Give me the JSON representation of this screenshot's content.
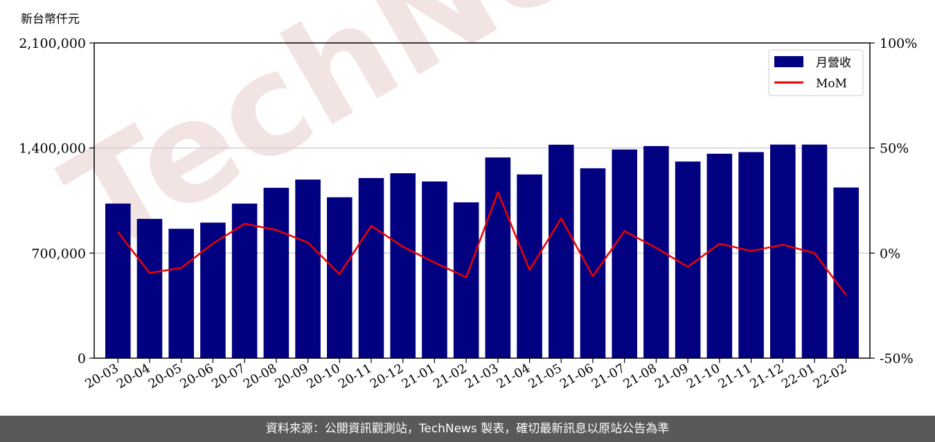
{
  "chart_data": {
    "type": "bar+line",
    "unit_label": "新台幣仟元",
    "categories": [
      "20-03",
      "20-04",
      "20-05",
      "20-06",
      "20-07",
      "20-08",
      "20-09",
      "20-10",
      "20-11",
      "20-12",
      "21-01",
      "21-02",
      "21-03",
      "21-04",
      "21-05",
      "21-06",
      "21-07",
      "21-08",
      "21-09",
      "21-10",
      "21-11",
      "21-12",
      "22-01",
      "22-02"
    ],
    "series": [
      {
        "name": "月營收",
        "kind": "bar",
        "axis": "left",
        "color": "#000080",
        "values": [
          1030000,
          928000,
          862000,
          903000,
          1030000,
          1135000,
          1190000,
          1072000,
          1200000,
          1232000,
          1177000,
          1038000,
          1337000,
          1224000,
          1422000,
          1265000,
          1390000,
          1413000,
          1310000,
          1362000,
          1373000,
          1423000,
          1423000,
          1137000
        ]
      },
      {
        "name": "MoM",
        "kind": "line",
        "axis": "right",
        "color": "#ee0000",
        "values": [
          10.0,
          -9.5,
          -7.0,
          4.5,
          14.0,
          11.0,
          5.0,
          -10.0,
          13.0,
          3.0,
          -4.5,
          -11.5,
          29.0,
          -8.0,
          16.5,
          -11.0,
          10.5,
          2.5,
          -6.5,
          4.5,
          1.0,
          4.0,
          0.0,
          -20.0
        ]
      }
    ],
    "y_left": {
      "min": 0,
      "max": 2100000,
      "ticks": [
        0,
        700000,
        1400000,
        2100000
      ],
      "tick_labels": [
        "0",
        "700,000",
        "1,400,000",
        "2,100,000"
      ]
    },
    "y_right": {
      "min": -50,
      "max": 100,
      "ticks": [
        -50,
        0,
        50,
        100
      ],
      "tick_labels": [
        "-50%",
        "0%",
        "50%",
        "100%"
      ]
    },
    "grid": "horizontal",
    "legend_position": "top-right",
    "watermark": "TechNews"
  },
  "footer": {
    "text": "資料來源：公開資訊觀測站，TechNews 製表，確切最新訊息以原站公告為準"
  }
}
